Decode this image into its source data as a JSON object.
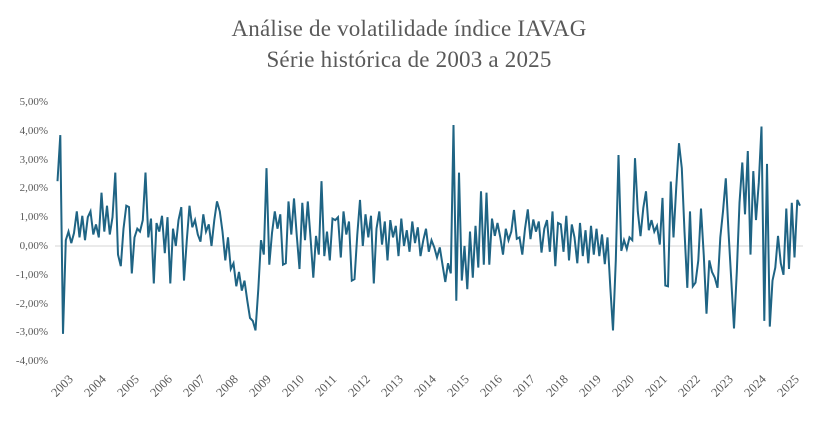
{
  "chart_data": {
    "type": "line",
    "title": "Análise de volatilidade índice IAVAG",
    "subtitle": "Série histórica de 2003 a 2025",
    "unit": "percent",
    "legend": "none",
    "x": {
      "start_year": 2003,
      "points_per_year": 12,
      "tick_labels": [
        "2003",
        "2004",
        "2005",
        "2006",
        "2007",
        "2008",
        "2009",
        "2010",
        "2011",
        "2012",
        "2013",
        "2014",
        "2015",
        "2016",
        "2017",
        "2018",
        "2019",
        "2020",
        "2021",
        "2022",
        "2023",
        "2024",
        "2025"
      ]
    },
    "y": {
      "min": -4,
      "max": 5,
      "tick_step": 1,
      "tick_labels": [
        "5,00%",
        "4,00%",
        "3,00%",
        "2,00%",
        "1,00%",
        "0,00%",
        "-1,00%",
        "-2,00%",
        "-3,00%",
        "-4,00%"
      ],
      "gridlines": "zero-line-only"
    },
    "series": [
      {
        "values_pct": [
          2.25,
          3.85,
          -3.05,
          0.2,
          0.5,
          0.1,
          0.45,
          1.2,
          0.3,
          1.05,
          0.2,
          1.0,
          1.2,
          0.4,
          0.75,
          0.3,
          1.85,
          0.5,
          1.4,
          0.4,
          1.0,
          2.55,
          -0.3,
          -0.7,
          0.6,
          1.4,
          1.35,
          -0.95,
          0.3,
          0.6,
          0.5,
          0.9,
          2.55,
          0.3,
          0.95,
          -1.3,
          0.8,
          0.5,
          1.05,
          -0.25,
          1.0,
          -1.3,
          0.6,
          0.0,
          0.9,
          1.35,
          -1.2,
          0.2,
          1.4,
          0.65,
          0.9,
          0.4,
          0.15,
          1.1,
          0.5,
          0.75,
          0.0,
          0.9,
          1.55,
          1.2,
          0.5,
          -0.5,
          0.3,
          -0.8,
          -0.6,
          -1.4,
          -0.9,
          -1.55,
          -1.2,
          -1.9,
          -2.5,
          -2.6,
          -2.93,
          -1.5,
          0.2,
          -0.3,
          2.7,
          -0.65,
          0.45,
          1.2,
          0.6,
          1.1,
          -0.65,
          -0.6,
          1.55,
          0.4,
          1.65,
          0.35,
          -0.8,
          1.5,
          0.2,
          1.55,
          0.3,
          -1.1,
          0.35,
          -0.3,
          2.25,
          -0.35,
          0.5,
          -0.5,
          0.95,
          0.9,
          1.0,
          -0.4,
          1.2,
          0.4,
          0.85,
          -1.2,
          -1.15,
          0.4,
          1.6,
          0.0,
          1.1,
          0.3,
          1.05,
          -1.3,
          0.6,
          1.2,
          0.05,
          0.85,
          -0.5,
          0.9,
          0.3,
          0.7,
          -0.35,
          0.95,
          0.0,
          0.55,
          -0.2,
          0.85,
          0.1,
          0.65,
          -0.35,
          0.2,
          0.6,
          -0.2,
          0.2,
          -0.05,
          -0.4,
          -0.05,
          -0.65,
          -1.25,
          -0.6,
          -0.95,
          4.2,
          -1.9,
          2.55,
          -1.2,
          0.0,
          -1.5,
          0.5,
          -1.1,
          0.7,
          -0.75,
          1.9,
          -0.65,
          1.85,
          -0.65,
          0.95,
          0.35,
          0.8,
          0.3,
          -0.3,
          0.6,
          0.2,
          0.5,
          1.25,
          0.25,
          0.3,
          -0.3,
          0.6,
          1.27,
          0.24,
          0.92,
          0.5,
          0.85,
          -0.23,
          0.6,
          0.9,
          -0.2,
          1.2,
          -0.7,
          0.8,
          0.75,
          -0.2,
          1.05,
          -0.5,
          0.75,
          0.3,
          -0.6,
          0.8,
          -0.35,
          0.55,
          -0.6,
          0.7,
          -0.3,
          0.6,
          -0.35,
          0.4,
          -0.63,
          0.3,
          -1.43,
          -2.93,
          -0.5,
          3.16,
          -0.17,
          0.2,
          -0.1,
          0.3,
          0.2,
          3.05,
          1.2,
          0.34,
          1.32,
          1.9,
          0.55,
          0.9,
          0.5,
          0.7,
          0.05,
          1.67,
          -1.37,
          -1.4,
          2.24,
          0.3,
          2.07,
          3.57,
          2.7,
          0.5,
          -1.45,
          1.2,
          -1.4,
          -1.27,
          -0.5,
          1.3,
          -0.34,
          -2.35,
          -0.5,
          -0.9,
          -1.1,
          -1.45,
          0.3,
          1.2,
          2.35,
          0.5,
          -1.2,
          -2.86,
          -0.9,
          1.5,
          2.9,
          1.1,
          3.3,
          -0.3,
          2.6,
          0.9,
          2.2,
          4.15,
          -2.6,
          2.85,
          -2.8,
          -1.2,
          -0.75,
          0.35,
          -0.6,
          -1.0,
          1.3,
          -0.8,
          1.5,
          -0.4,
          1.6,
          1.4
        ]
      }
    ]
  },
  "colors": {
    "line": "#1f6484",
    "zero_gridline": "#d6d6d6",
    "text": "#595959",
    "background": "#ffffff"
  }
}
